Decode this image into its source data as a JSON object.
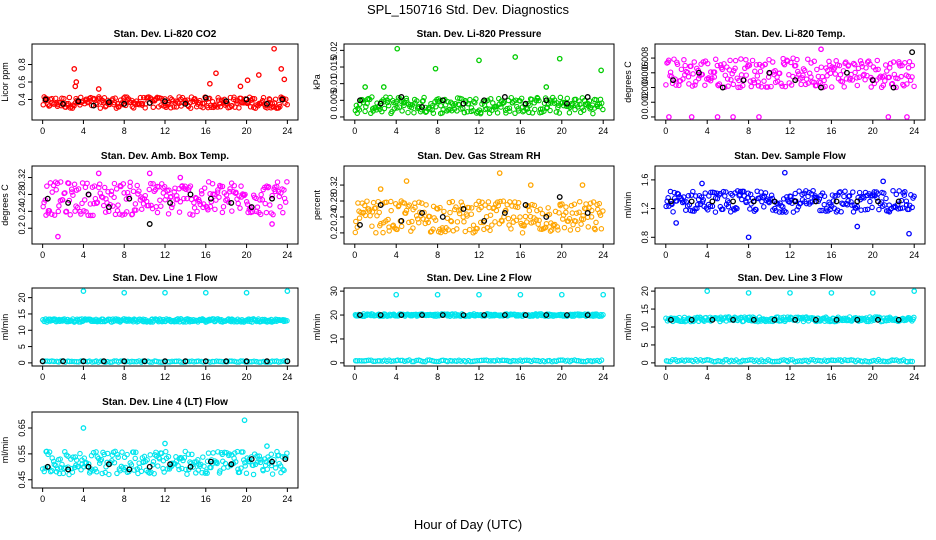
{
  "title": "SPL_150716  Std. Dev. Diagnostics",
  "xlabel": "Hour of Day (UTC)",
  "chart_data": [
    {
      "type": "scatter",
      "title": "Stan. Dev. Li-820 CO2",
      "ylabel": "Licor ppm",
      "xlim": [
        0,
        24
      ],
      "ylim": [
        0.2,
        1.0
      ],
      "yticks": [
        0.4,
        0.6,
        0.8
      ],
      "xticks": [
        0,
        4,
        8,
        12,
        16,
        20,
        24
      ],
      "color": "#ff0000",
      "band": [
        0.3,
        0.43
      ],
      "outliers": [
        [
          3.2,
          0.55
        ],
        [
          3.3,
          0.6
        ],
        [
          3.1,
          0.75
        ],
        [
          5.5,
          0.52
        ],
        [
          16.4,
          0.58
        ],
        [
          17.0,
          0.7
        ],
        [
          19.4,
          0.55
        ],
        [
          20.1,
          0.62
        ],
        [
          21.2,
          0.68
        ],
        [
          22.7,
          0.98
        ],
        [
          23.4,
          0.75
        ],
        [
          23.7,
          0.63
        ]
      ],
      "black": [
        [
          0.3,
          0.4
        ],
        [
          2.0,
          0.35
        ],
        [
          3.5,
          0.38
        ],
        [
          5.0,
          0.33
        ],
        [
          6.5,
          0.37
        ],
        [
          8.0,
          0.35
        ],
        [
          10.5,
          0.36
        ],
        [
          12.0,
          0.38
        ],
        [
          14.0,
          0.35
        ],
        [
          16.0,
          0.42
        ],
        [
          18.0,
          0.38
        ],
        [
          20.0,
          0.4
        ],
        [
          22.0,
          0.35
        ],
        [
          23.5,
          0.4
        ]
      ]
    },
    {
      "type": "scatter",
      "title": "Stan. Dev. Li-820 Pressure",
      "ylabel": "kPa",
      "xlim": [
        0,
        24
      ],
      "ylim": [
        0,
        0.021
      ],
      "yticks": [
        0.0,
        0.005,
        0.01,
        0.015,
        0.02
      ],
      "xticks": [
        0,
        4,
        8,
        12,
        16,
        20,
        24
      ],
      "color": "#00cc00",
      "band": [
        0.001,
        0.006
      ],
      "outliers": [
        [
          1.0,
          0.009
        ],
        [
          4.1,
          0.0205
        ],
        [
          7.8,
          0.0145
        ],
        [
          12.0,
          0.017
        ],
        [
          15.5,
          0.018
        ],
        [
          19.8,
          0.0175
        ],
        [
          23.8,
          0.014
        ],
        [
          2.8,
          0.009
        ],
        [
          18.5,
          0.009
        ]
      ],
      "black": [
        [
          0.5,
          0.005
        ],
        [
          2.5,
          0.004
        ],
        [
          4.5,
          0.006
        ],
        [
          6.5,
          0.003
        ],
        [
          8.5,
          0.005
        ],
        [
          10.5,
          0.004
        ],
        [
          12.5,
          0.005
        ],
        [
          14.5,
          0.006
        ],
        [
          16.5,
          0.004
        ],
        [
          18.5,
          0.005
        ],
        [
          20.5,
          0.004
        ],
        [
          22.5,
          0.006
        ]
      ]
    },
    {
      "type": "scatter",
      "title": "Stan. Dev. Li-820 Temp.",
      "ylabel": "degrees C",
      "xlim": [
        0,
        24
      ],
      "ylim": [
        0,
        0.0095
      ],
      "yticks": [
        0.0,
        0.002,
        0.004,
        0.006,
        0.008
      ],
      "xticks": [
        0,
        4,
        8,
        12,
        16,
        20,
        24
      ],
      "color": "#ff00ff",
      "band": [
        0.004,
        0.008
      ],
      "outliers": [
        [
          0.3,
          0.0
        ],
        [
          2.5,
          0.0
        ],
        [
          5.0,
          0.0
        ],
        [
          6.5,
          0.0
        ],
        [
          9.0,
          0.0
        ],
        [
          21.5,
          0.0
        ],
        [
          23.3,
          0.0
        ],
        [
          15.0,
          0.0092
        ]
      ],
      "black": [
        [
          0.7,
          0.005
        ],
        [
          3.2,
          0.006
        ],
        [
          5.5,
          0.004
        ],
        [
          7.5,
          0.005
        ],
        [
          10.0,
          0.006
        ],
        [
          12.5,
          0.005
        ],
        [
          15.0,
          0.004
        ],
        [
          17.5,
          0.006
        ],
        [
          20.0,
          0.005
        ],
        [
          22.0,
          0.004
        ],
        [
          23.8,
          0.0088
        ]
      ]
    },
    {
      "type": "scatter",
      "title": "Stan. Dev. Amb. Box Temp.",
      "ylabel": "degrees C",
      "xlim": [
        0,
        24
      ],
      "ylim": [
        0.17,
        0.34
      ],
      "yticks": [
        0.2,
        0.24,
        0.28,
        0.32
      ],
      "xticks": [
        0,
        4,
        8,
        12,
        16,
        20,
        24
      ],
      "color": "#ff00ff",
      "band": [
        0.23,
        0.31
      ],
      "outliers": [
        [
          1.5,
          0.18
        ],
        [
          5.5,
          0.33
        ],
        [
          10.5,
          0.33
        ],
        [
          13.5,
          0.32
        ],
        [
          22.5,
          0.21
        ]
      ],
      "black": [
        [
          0.5,
          0.27
        ],
        [
          2.5,
          0.26
        ],
        [
          4.5,
          0.28
        ],
        [
          6.5,
          0.25
        ],
        [
          8.5,
          0.27
        ],
        [
          10.5,
          0.21
        ],
        [
          12.5,
          0.26
        ],
        [
          14.5,
          0.28
        ],
        [
          16.5,
          0.27
        ],
        [
          18.5,
          0.26
        ],
        [
          20.5,
          0.25
        ],
        [
          22.5,
          0.27
        ]
      ]
    },
    {
      "type": "scatter",
      "title": "Stan. Dev. Gas Stream RH",
      "ylabel": "percent",
      "xlim": [
        0,
        24
      ],
      "ylim": [
        0.18,
        0.36
      ],
      "yticks": [
        0.2,
        0.24,
        0.28,
        0.32
      ],
      "xticks": [
        0,
        4,
        8,
        12,
        16,
        20,
        24
      ],
      "color": "#ffa500",
      "band": [
        0.2,
        0.28
      ],
      "outliers": [
        [
          2.5,
          0.31
        ],
        [
          5.0,
          0.33
        ],
        [
          14.0,
          0.35
        ],
        [
          17.0,
          0.32
        ],
        [
          22.0,
          0.32
        ]
      ],
      "black": [
        [
          0.5,
          0.22
        ],
        [
          2.5,
          0.27
        ],
        [
          4.5,
          0.23
        ],
        [
          6.5,
          0.25
        ],
        [
          8.5,
          0.24
        ],
        [
          10.5,
          0.26
        ],
        [
          12.5,
          0.23
        ],
        [
          14.5,
          0.25
        ],
        [
          16.5,
          0.27
        ],
        [
          18.5,
          0.24
        ],
        [
          19.8,
          0.29
        ],
        [
          22.5,
          0.25
        ]
      ]
    },
    {
      "type": "scatter",
      "title": "Stan. Dev. Sample Flow",
      "ylabel": "ml/min",
      "xlim": [
        0,
        24
      ],
      "ylim": [
        0.75,
        1.75
      ],
      "yticks": [
        0.8,
        1.2,
        1.6
      ],
      "xticks": [
        0,
        4,
        8,
        12,
        16,
        20,
        24
      ],
      "color": "#0000ff",
      "band": [
        1.15,
        1.45
      ],
      "outliers": [
        [
          8.0,
          0.8
        ],
        [
          11.5,
          1.7
        ],
        [
          23.5,
          0.85
        ],
        [
          1.0,
          1.0
        ],
        [
          18.5,
          0.95
        ],
        [
          3.5,
          1.55
        ],
        [
          21.0,
          1.58
        ]
      ],
      "black": [
        [
          0.5,
          1.3
        ],
        [
          2.5,
          1.3
        ],
        [
          4.5,
          1.3
        ],
        [
          6.5,
          1.3
        ],
        [
          8.5,
          1.3
        ],
        [
          10.5,
          1.3
        ],
        [
          12.5,
          1.3
        ],
        [
          14.5,
          1.3
        ],
        [
          16.5,
          1.3
        ],
        [
          18.5,
          1.3
        ],
        [
          20.5,
          1.3
        ],
        [
          22.5,
          1.3
        ]
      ]
    },
    {
      "type": "scatter",
      "title": "Stan. Dev. Line 1 Flow",
      "ylabel": "ml/min",
      "xlim": [
        0,
        24
      ],
      "ylim": [
        0,
        22
      ],
      "yticks": [
        0,
        5,
        10,
        15,
        20
      ],
      "xticks": [
        0,
        4,
        8,
        12,
        16,
        20,
        24
      ],
      "color": "#00e5ee",
      "band": [
        12.5,
        13.5
      ],
      "band2": [
        0.2,
        0.6
      ],
      "outliers": [
        [
          4.0,
          22
        ],
        [
          8.0,
          21.5
        ],
        [
          12.0,
          21.5
        ],
        [
          16.0,
          21.5
        ],
        [
          20.0,
          21.5
        ],
        [
          24.0,
          22
        ]
      ],
      "black": [
        [
          0,
          0.5
        ],
        [
          2,
          0.5
        ],
        [
          4,
          0.5
        ],
        [
          6,
          0.5
        ],
        [
          8,
          0.5
        ],
        [
          10,
          0.5
        ],
        [
          12,
          0.5
        ],
        [
          14,
          0.5
        ],
        [
          16,
          0.5
        ],
        [
          18,
          0.5
        ],
        [
          20,
          0.5
        ],
        [
          22,
          0.5
        ],
        [
          24,
          0.5
        ]
      ]
    },
    {
      "type": "scatter",
      "title": "Stan. Dev. Line 2 Flow",
      "ylabel": "ml/min",
      "xlim": [
        0,
        24
      ],
      "ylim": [
        0,
        30
      ],
      "yticks": [
        0,
        10,
        20,
        30
      ],
      "xticks": [
        0,
        4,
        8,
        12,
        16,
        20,
        24
      ],
      "color": "#00e5ee",
      "band": [
        19.5,
        20.5
      ],
      "band2": [
        0.5,
        1.2
      ],
      "outliers": [
        [
          4.0,
          28.5
        ],
        [
          8.0,
          28.5
        ],
        [
          12.0,
          28.5
        ],
        [
          16.0,
          28.5
        ],
        [
          20.0,
          28.5
        ],
        [
          24.0,
          28.5
        ]
      ],
      "black": [
        [
          0.5,
          20
        ],
        [
          2.5,
          20
        ],
        [
          4.5,
          20
        ],
        [
          6.5,
          20
        ],
        [
          8.5,
          20
        ],
        [
          10.5,
          20
        ],
        [
          12.5,
          20
        ],
        [
          14.5,
          20
        ],
        [
          16.5,
          20
        ],
        [
          18.5,
          20
        ],
        [
          20.5,
          20
        ],
        [
          22.5,
          20
        ]
      ]
    },
    {
      "type": "scatter",
      "title": "Stan. Dev. Line 3 Flow",
      "ylabel": "ml/min",
      "xlim": [
        0,
        24
      ],
      "ylim": [
        0,
        20
      ],
      "yticks": [
        0,
        5,
        10,
        15,
        20
      ],
      "xticks": [
        0,
        4,
        8,
        12,
        16,
        20,
        24
      ],
      "color": "#00e5ee",
      "band": [
        11.5,
        12.8
      ],
      "band2": [
        0.3,
        0.9
      ],
      "outliers": [
        [
          4.0,
          20
        ],
        [
          8.0,
          19.5
        ],
        [
          12.0,
          19.5
        ],
        [
          16.0,
          19.5
        ],
        [
          20.0,
          19.5
        ],
        [
          24.0,
          20
        ]
      ],
      "black": [
        [
          0.5,
          12
        ],
        [
          2.5,
          12
        ],
        [
          4.5,
          12
        ],
        [
          6.5,
          12
        ],
        [
          8.5,
          12
        ],
        [
          10.5,
          12
        ],
        [
          12.5,
          12
        ],
        [
          14.5,
          12
        ],
        [
          16.5,
          12
        ],
        [
          18.5,
          12
        ],
        [
          20.5,
          12
        ],
        [
          22.5,
          12
        ]
      ]
    },
    {
      "type": "scatter",
      "title": "Stan. Dev. Line 4 (LT) Flow",
      "ylabel": "ml/min",
      "xlim": [
        0,
        24
      ],
      "ylim": [
        0.43,
        0.7
      ],
      "yticks": [
        0.45,
        0.55,
        0.65
      ],
      "xticks": [
        0,
        4,
        8,
        12,
        16,
        20,
        24
      ],
      "color": "#00e5ee",
      "band": [
        0.47,
        0.56
      ],
      "outliers": [
        [
          4.0,
          0.65
        ],
        [
          12.0,
          0.59
        ],
        [
          19.8,
          0.68
        ],
        [
          22.0,
          0.58
        ]
      ],
      "black": [
        [
          0.5,
          0.5
        ],
        [
          2.5,
          0.49
        ],
        [
          4.5,
          0.5
        ],
        [
          6.5,
          0.51
        ],
        [
          8.5,
          0.49
        ],
        [
          10.5,
          0.5
        ],
        [
          12.5,
          0.51
        ],
        [
          14.5,
          0.5
        ],
        [
          16.5,
          0.52
        ],
        [
          18.5,
          0.51
        ],
        [
          20.5,
          0.53
        ],
        [
          22.5,
          0.52
        ],
        [
          23.8,
          0.53
        ]
      ]
    }
  ]
}
